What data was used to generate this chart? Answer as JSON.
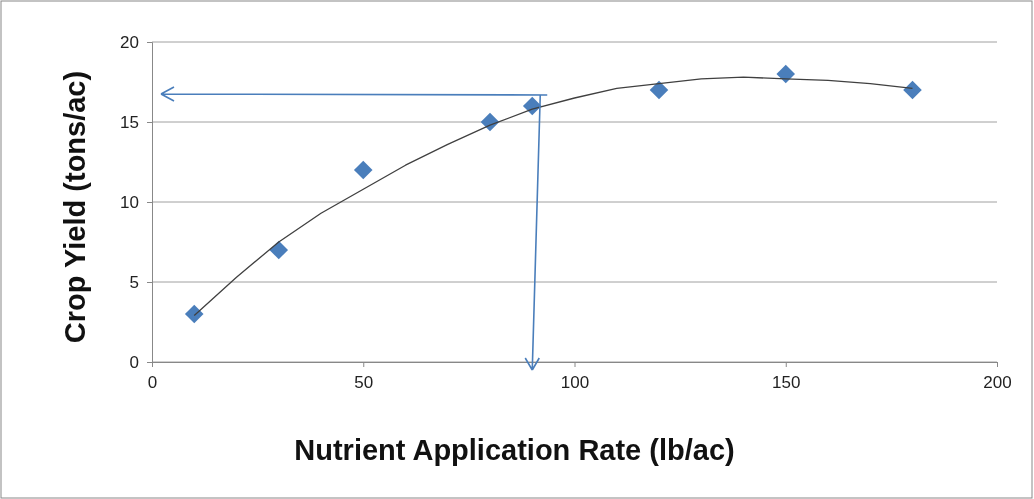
{
  "chart_data": {
    "type": "scatter",
    "xlabel": "Nutrient Application Rate (lb/ac)",
    "ylabel": "Crop Yield (tons/ac)",
    "xlim": [
      0,
      200
    ],
    "xticks": [
      0,
      50,
      100,
      150,
      200
    ],
    "ylim": [
      0,
      20
    ],
    "yticks": [
      0,
      5,
      10,
      15,
      20
    ],
    "grid": "y",
    "marker": "diamond",
    "series": [
      {
        "color": "#4a7ebb",
        "x": [
          10,
          30,
          50,
          80,
          90,
          120,
          150,
          180
        ],
        "values": [
          3,
          7,
          12,
          15,
          16,
          17,
          18,
          17
        ]
      },
      {
        "type": "line",
        "marker": "none",
        "color": "#404040",
        "x": [
          10,
          20,
          30,
          40,
          50,
          60,
          70,
          80,
          90,
          100,
          110,
          120,
          130,
          140,
          150,
          160,
          170,
          180
        ],
        "values": [
          2.9,
          5.3,
          7.5,
          9.3,
          10.8,
          12.3,
          13.6,
          14.8,
          15.8,
          16.5,
          17.1,
          17.4,
          17.7,
          17.8,
          17.7,
          17.6,
          17.4,
          17.1
        ]
      }
    ]
  }
}
